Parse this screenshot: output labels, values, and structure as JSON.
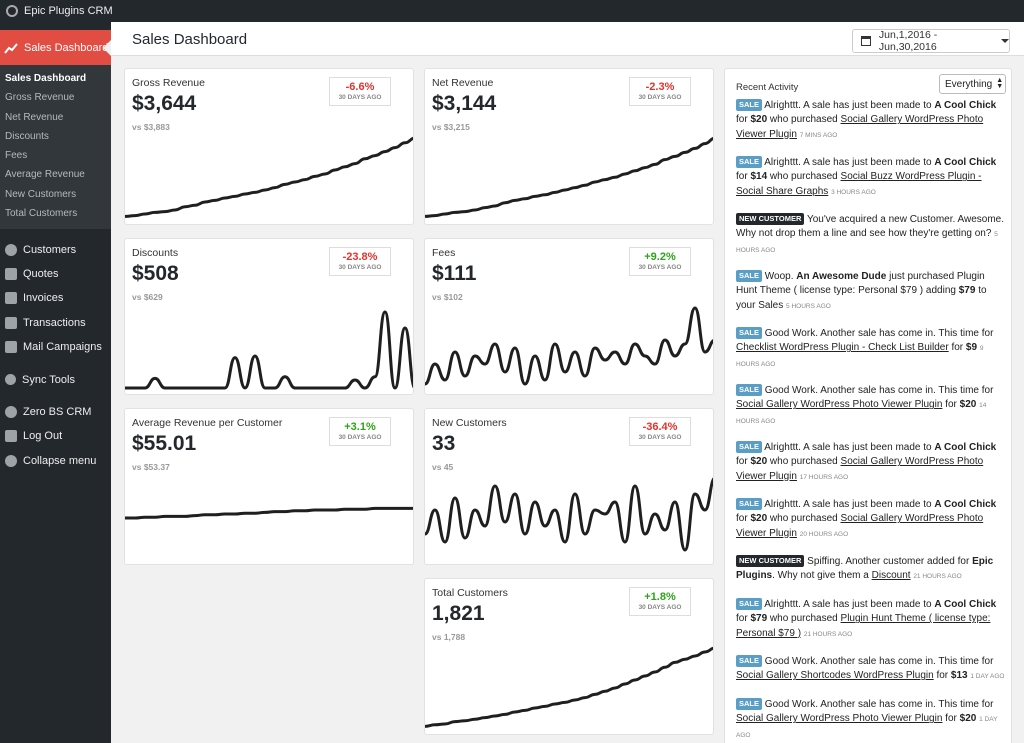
{
  "adminbar": {
    "site_name": "Epic Plugins CRM"
  },
  "sidebar": {
    "active": "Sales Dashboard",
    "submenu": [
      "Sales Dashboard",
      "Gross Revenue",
      "Net Revenue",
      "Discounts",
      "Fees",
      "Average Revenue",
      "New Customers",
      "Total Customers"
    ],
    "items": [
      {
        "label": "Customers",
        "icon": "person-icon"
      },
      {
        "label": "Quotes",
        "icon": "tag-icon"
      },
      {
        "label": "Invoices",
        "icon": "invoice-icon"
      },
      {
        "label": "Transactions",
        "icon": "cart-icon"
      },
      {
        "label": "Mail Campaigns",
        "icon": "mail-icon"
      },
      {
        "label": "Sync Tools",
        "icon": "sync-icon"
      },
      {
        "label": "Zero BS CRM",
        "icon": "gear-icon"
      },
      {
        "label": "Log Out",
        "icon": "logout-icon"
      },
      {
        "label": "Collapse menu",
        "icon": "collapse-icon"
      }
    ]
  },
  "header": {
    "title": "Sales Dashboard",
    "date_range": "Jun,1,2016 - Jun,30,2016"
  },
  "cards": {
    "gross": {
      "label": "Gross Revenue",
      "value": "$3,644",
      "vs": "vs $3,883",
      "change": "-6.6%",
      "ago": "30 DAYS AGO"
    },
    "net": {
      "label": "Net Revenue",
      "value": "$3,144",
      "vs": "vs $3,215",
      "change": "-2.3%",
      "ago": "30 DAYS AGO"
    },
    "discounts": {
      "label": "Discounts",
      "value": "$508",
      "vs": "vs $629",
      "change": "-23.8%",
      "ago": "30 DAYS AGO"
    },
    "fees": {
      "label": "Fees",
      "value": "$111",
      "vs": "vs $102",
      "change": "+9.2%",
      "ago": "30 DAYS AGO"
    },
    "avg": {
      "label": "Average Revenue per Customer",
      "value": "$55.01",
      "vs": "vs $53.37",
      "change": "+3.1%",
      "ago": "30 DAYS AGO"
    },
    "newcust": {
      "label": "New Customers",
      "value": "33",
      "vs": "vs 45",
      "change": "-36.4%",
      "ago": "30 DAYS AGO"
    },
    "totalcust": {
      "label": "Total Customers",
      "value": "1,821",
      "vs": "vs 1,788",
      "change": "+1.8%",
      "ago": "30 DAYS AGO"
    }
  },
  "activity": {
    "title": "Recent Activity",
    "filter": "Everything",
    "sale_tag": "SALE",
    "new_customer_tag": "NEW CUSTOMER",
    "items": [
      {
        "t1": "Alrighttt. A sale has just been made to ",
        "name": "A Cool Chick",
        "t2": " for ",
        "amount": "$20",
        "t3": " who purchased ",
        "product": "Social Gallery WordPress Photo Viewer Plugin",
        "time": "7 MINS AGO"
      },
      {
        "t1": "Alrighttt. A sale has just been made to ",
        "name": "A Cool Chick",
        "t2": " for ",
        "amount": "$14",
        "t3": " who purchased ",
        "product": "Social Buzz WordPress Plugin - Social Share Graphs",
        "time": "3 HOURS AGO"
      },
      {
        "text": "You've acquired a new Customer. Awesome. Why not drop them a line and see how they're getting on?",
        "time": "5 HOURS AGO"
      },
      {
        "t1": "Woop. ",
        "name": "An Awesome Dude",
        "t2": " just purchased Plugin Hunt Theme ( license type: Personal $79 ) adding ",
        "amount": "$79",
        "t3": " to your Sales",
        "time": "5 HOURS AGO"
      },
      {
        "t1": "Good Work. Another sale has come in. This time for ",
        "product": "Checklist WordPress Plugin - Check List Builder",
        "t2": " for ",
        "amount": "$9",
        "time": "9 HOURS AGO"
      },
      {
        "t1": "Good Work. Another sale has come in. This time for ",
        "product": "Social Gallery WordPress Photo Viewer Plugin",
        "t2": " for ",
        "amount": "$20",
        "time": "14 HOURS AGO"
      },
      {
        "t1": "Alrighttt. A sale has just been made to ",
        "name": "A Cool Chick",
        "t2": " for ",
        "amount": "$20",
        "t3": " who purchased ",
        "product": "Social Gallery WordPress Photo Viewer Plugin",
        "time": "17 HOURS AGO"
      },
      {
        "t1": "Alrighttt. A sale has just been made to ",
        "name": "A Cool Chick",
        "t2": " for ",
        "amount": "$20",
        "t3": " who purchased ",
        "product": "Social Gallery WordPress Photo Viewer Plugin",
        "time": "20 HOURS AGO"
      },
      {
        "t1": "Spiffing. Another customer added for ",
        "name": "Epic Plugins",
        "t2": ". Why not give them a ",
        "link": "Discount",
        "time": "21 HOURS AGO"
      },
      {
        "t1": "Alrighttt. A sale has just been made to ",
        "name": "A Cool Chick",
        "t2": " for ",
        "amount": "$79",
        "t3": " who purchased ",
        "product": "Plugin Hunt Theme ( license type: Personal $79 )",
        "time": "21 HOURS AGO"
      },
      {
        "t1": "Good Work. Another sale has come in. This time for ",
        "product": "Social Gallery Shortcodes WordPress Plugin",
        "t2": " for ",
        "amount": "$13",
        "time": "1 DAY AGO"
      },
      {
        "t1": "Good Work. Another sale has come in. This time for ",
        "product": "Social Gallery WordPress Photo Viewer Plugin",
        "t2": " for ",
        "amount": "$20",
        "time": "1 DAY AGO"
      }
    ]
  },
  "colors": {
    "accent": "#e14d43",
    "sidebar": "#23282d",
    "sale_tag": "#5b9ec5",
    "down": "#e0322d",
    "up": "#2ea318"
  },
  "chart_data": [
    {
      "type": "line",
      "name": "gross",
      "values": [
        2,
        3,
        5,
        7,
        8,
        10,
        14,
        16,
        20,
        22,
        25,
        27,
        30,
        32,
        35,
        38,
        42,
        45,
        48,
        52,
        55,
        60,
        64,
        68,
        74,
        78,
        83,
        88,
        94,
        100
      ]
    },
    {
      "type": "line",
      "name": "net",
      "values": [
        2,
        3,
        5,
        7,
        8,
        10,
        13,
        15,
        19,
        22,
        24,
        27,
        29,
        32,
        35,
        38,
        41,
        45,
        48,
        51,
        55,
        59,
        63,
        67,
        73,
        77,
        82,
        87,
        93,
        100
      ]
    },
    {
      "type": "line",
      "name": "discounts",
      "values": [
        0,
        0,
        0,
        12,
        0,
        0,
        0,
        0,
        0,
        0,
        0,
        38,
        0,
        40,
        0,
        0,
        14,
        0,
        0,
        0,
        0,
        0,
        0,
        10,
        0,
        14,
        95,
        0,
        75,
        0
      ]
    },
    {
      "type": "line",
      "name": "fees",
      "values": [
        5,
        30,
        10,
        45,
        15,
        40,
        30,
        55,
        20,
        50,
        5,
        40,
        10,
        55,
        20,
        45,
        15,
        50,
        35,
        45,
        30,
        55,
        40,
        30,
        60,
        40,
        55,
        100,
        45,
        60
      ]
    },
    {
      "type": "line",
      "name": "avg",
      "values": [
        50,
        50,
        51,
        51,
        52,
        52,
        52,
        53,
        54,
        54,
        55,
        55,
        56,
        56,
        57,
        58,
        58,
        59,
        59,
        60,
        60,
        60,
        61,
        61,
        61,
        62,
        62,
        62,
        62,
        62
      ]
    },
    {
      "type": "line",
      "name": "newcust",
      "values": [
        30,
        60,
        20,
        75,
        25,
        60,
        40,
        90,
        45,
        80,
        30,
        70,
        40,
        60,
        20,
        80,
        30,
        60,
        55,
        70,
        20,
        90,
        30,
        55,
        35,
        70,
        10,
        80,
        60,
        100
      ]
    },
    {
      "type": "line",
      "name": "totalcust",
      "values": [
        2,
        4,
        5,
        8,
        9,
        11,
        13,
        15,
        17,
        20,
        22,
        25,
        27,
        30,
        32,
        35,
        38,
        42,
        46,
        50,
        55,
        60,
        65,
        70,
        76,
        82,
        86,
        90,
        95,
        100
      ]
    }
  ]
}
